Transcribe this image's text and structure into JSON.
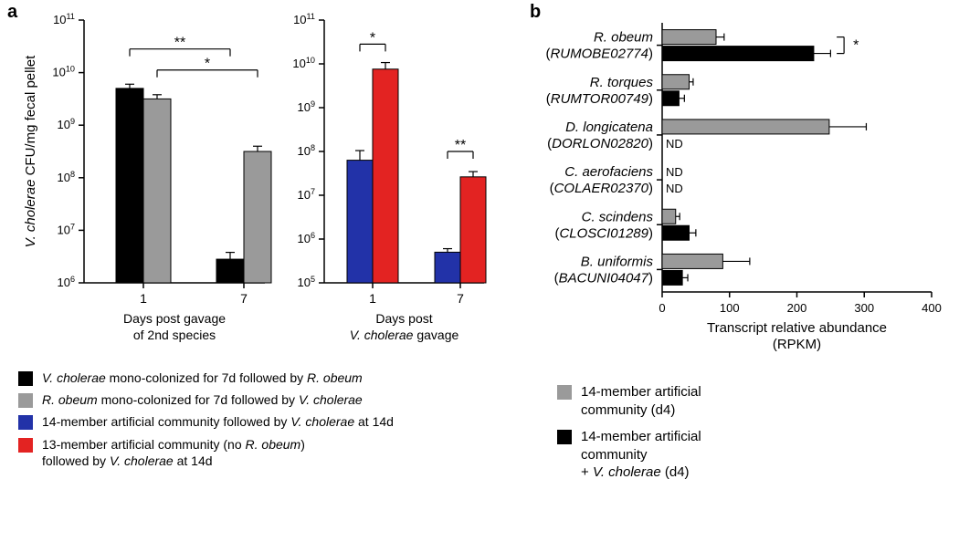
{
  "panel_a": {
    "label": "a",
    "yaxis_label": "V. cholerae CFU/mg fecal pellet",
    "yaxis_label_fontsize": 15,
    "chart1": {
      "type": "bar",
      "xlabel_line1": "Days post gavage",
      "xlabel_line2": "of 2nd species",
      "xlabel_fontsize": 14,
      "ylim_exp": [
        6,
        11
      ],
      "ytick_exps": [
        6,
        7,
        8,
        9,
        10,
        11
      ],
      "ytick_fontsize": 13,
      "groups": [
        "1",
        "7"
      ],
      "bars": [
        {
          "group": 0,
          "value_exp": 9.7,
          "err_exp": 0.08,
          "color": "#000000"
        },
        {
          "group": 0,
          "value_exp": 9.5,
          "err_exp": 0.08,
          "color": "#9a9a9a"
        },
        {
          "group": 1,
          "value_exp": 6.45,
          "err_exp": 0.13,
          "color": "#000000"
        },
        {
          "group": 1,
          "value_exp": 8.5,
          "err_exp": 0.1,
          "color": "#9a9a9a"
        }
      ],
      "sig_brackets": [
        {
          "from": 0,
          "to": 2,
          "y_exp": 10.45,
          "label": "**"
        },
        {
          "from": 1,
          "to": 3,
          "y_exp": 10.05,
          "label": "*"
        }
      ],
      "axis_color": "#000000",
      "bg": "#ffffff",
      "bar_gap_inner": 0,
      "bar_gap_group": 0.7
    },
    "chart2": {
      "type": "bar",
      "xlabel_line1": "Days post",
      "xlabel_line2": "V. cholerae gavage",
      "xlabel_fontsize": 14,
      "ylim_exp": [
        5,
        11
      ],
      "ytick_exps": [
        5,
        6,
        7,
        8,
        9,
        10,
        11
      ],
      "ytick_fontsize": 13,
      "groups": [
        "1",
        "7"
      ],
      "bars": [
        {
          "group": 0,
          "value_exp": 7.8,
          "err_exp": 0.22,
          "color": "#2232a8"
        },
        {
          "group": 0,
          "value_exp": 9.88,
          "err_exp": 0.15,
          "color": "#e32322"
        },
        {
          "group": 1,
          "value_exp": 5.7,
          "err_exp": 0.08,
          "color": "#2232a8"
        },
        {
          "group": 1,
          "value_exp": 7.42,
          "err_exp": 0.12,
          "color": "#e32322"
        }
      ],
      "sig_brackets": [
        {
          "from": 0,
          "to": 1,
          "y_exp": 10.45,
          "label": "*"
        },
        {
          "from": 2,
          "to": 3,
          "y_exp": 8.0,
          "label": "**"
        }
      ],
      "axis_color": "#000000",
      "bg": "#ffffff"
    },
    "legend": [
      {
        "color": "#000000",
        "text_parts": [
          {
            "t": "V. cholerae",
            "i": true
          },
          {
            "t": " mono-colonized for 7d followed by ",
            "i": false
          },
          {
            "t": "R. obeum",
            "i": true
          }
        ]
      },
      {
        "color": "#9a9a9a",
        "text_parts": [
          {
            "t": "R. obeum",
            "i": true
          },
          {
            "t": " mono-colonized for 7d followed by ",
            "i": false
          },
          {
            "t": "V. cholerae",
            "i": true
          }
        ]
      },
      {
        "color": "#2232a8",
        "text_parts": [
          {
            "t": "14-member artificial community followed by ",
            "i": false
          },
          {
            "t": "V. cholerae",
            "i": true
          },
          {
            "t": " at 14d",
            "i": false
          }
        ]
      },
      {
        "color": "#e32322",
        "text_parts": [
          {
            "t": "13-member artificial community (no ",
            "i": false
          },
          {
            "t": "R. obeum",
            "i": true
          },
          {
            "t": ")",
            "i": false
          }
        ],
        "line2_parts": [
          {
            "t": "followed by ",
            "i": false
          },
          {
            "t": "V. cholerae",
            "i": true
          },
          {
            "t": " at 14d",
            "i": false
          }
        ]
      }
    ]
  },
  "panel_b": {
    "label": "b",
    "chart": {
      "type": "barh",
      "xlabel_line1": "Transcript relative abundance",
      "xlabel_line2": "(RPKM)",
      "xlabel_fontsize": 15,
      "xlim": [
        0,
        400
      ],
      "xticks": [
        0,
        100,
        200,
        300,
        400
      ],
      "xtick_fontsize": 13,
      "categories": [
        {
          "name": "R. obeum",
          "gene": "RUMOBE02774"
        },
        {
          "name": "R. torques",
          "gene": "RUMTOR00749"
        },
        {
          "name": "D. longicatena",
          "gene": "DORLON02820"
        },
        {
          "name": "C. aerofaciens",
          "gene": "COLAER02370"
        },
        {
          "name": "C. scindens",
          "gene": "CLOSCI01289"
        },
        {
          "name": "B. uniformis",
          "gene": "BACUNI04047"
        }
      ],
      "bars": [
        {
          "cat": 0,
          "series": 0,
          "value": 80,
          "err": 12,
          "color": "#9a9a9a"
        },
        {
          "cat": 0,
          "series": 1,
          "value": 225,
          "err": 25,
          "color": "#000000",
          "sig_to": 0,
          "sig_label": "*"
        },
        {
          "cat": 1,
          "series": 0,
          "value": 40,
          "err": 6,
          "color": "#9a9a9a"
        },
        {
          "cat": 1,
          "series": 1,
          "value": 25,
          "err": 8,
          "color": "#000000"
        },
        {
          "cat": 2,
          "series": 0,
          "value": 248,
          "err": 55,
          "color": "#9a9a9a"
        },
        {
          "cat": 2,
          "series": 1,
          "nd": true,
          "nd_text": "ND",
          "color": "#000000"
        },
        {
          "cat": 3,
          "series": 0,
          "nd": true,
          "nd_text": "ND",
          "color": "#9a9a9a"
        },
        {
          "cat": 3,
          "series": 1,
          "nd": true,
          "nd_text": "ND",
          "color": "#000000"
        },
        {
          "cat": 4,
          "series": 0,
          "value": 20,
          "err": 6,
          "color": "#9a9a9a"
        },
        {
          "cat": 4,
          "series": 1,
          "value": 40,
          "err": 10,
          "color": "#000000"
        },
        {
          "cat": 5,
          "series": 0,
          "value": 90,
          "err": 40,
          "color": "#9a9a9a"
        },
        {
          "cat": 5,
          "series": 1,
          "value": 30,
          "err": 8,
          "color": "#000000"
        }
      ],
      "axis_color": "#000000",
      "bg": "#ffffff",
      "category_fontsize": 15
    },
    "legend": [
      {
        "color": "#9a9a9a",
        "text_parts": [
          {
            "t": "14-member artificial",
            "i": false
          }
        ],
        "line2_parts": [
          {
            "t": "community (d4)",
            "i": false
          }
        ]
      },
      {
        "color": "#000000",
        "text_parts": [
          {
            "t": "14-member artificial",
            "i": false
          }
        ],
        "line2_parts": [
          {
            "t": "community",
            "i": false
          }
        ],
        "line3_parts": [
          {
            "t": "+ ",
            "i": false
          },
          {
            "t": "V. cholerae",
            "i": true
          },
          {
            "t": " (d4)",
            "i": false
          }
        ]
      }
    ]
  }
}
